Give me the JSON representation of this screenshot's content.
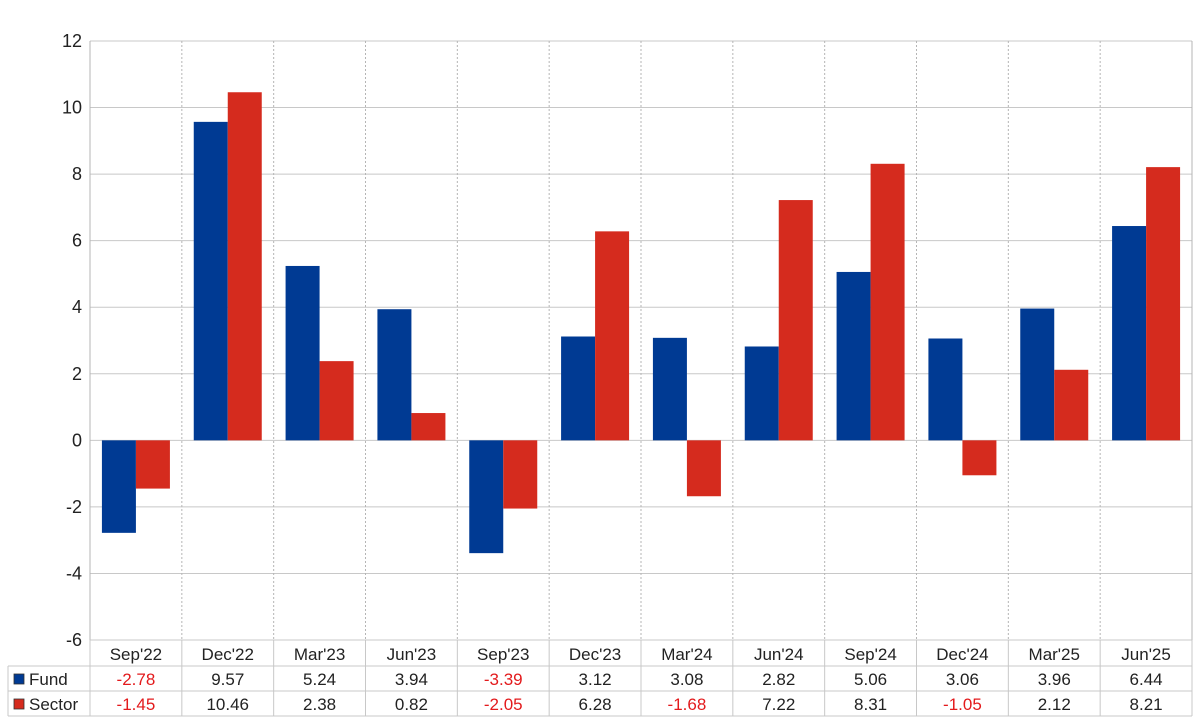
{
  "chart_data": {
    "type": "bar",
    "categories": [
      "Sep'22",
      "Dec'22",
      "Mar'23",
      "Jun'23",
      "Sep'23",
      "Dec'23",
      "Mar'24",
      "Jun'24",
      "Sep'24",
      "Dec'24",
      "Mar'25",
      "Jun'25"
    ],
    "series": [
      {
        "name": "Fund",
        "color": "#003a93",
        "values": [
          -2.78,
          9.57,
          5.24,
          3.94,
          -3.39,
          3.12,
          3.08,
          2.82,
          5.06,
          3.06,
          3.96,
          6.44
        ],
        "labels": [
          "-2.78",
          "9.57",
          "5.24",
          "3.94",
          "-3.39",
          "3.12",
          "3.08",
          "2.82",
          "5.06",
          "3.06",
          "3.96",
          "6.44"
        ]
      },
      {
        "name": "Sector",
        "color": "#d52b1e",
        "values": [
          -1.45,
          10.46,
          2.38,
          0.82,
          -2.05,
          6.28,
          -1.68,
          7.22,
          8.31,
          -1.05,
          2.12,
          8.21
        ],
        "labels": [
          "-1.45",
          "10.46",
          "2.38",
          "0.82",
          "-2.05",
          "6.28",
          "-1.68",
          "7.22",
          "8.31",
          "-1.05",
          "2.12",
          "8.21"
        ]
      }
    ],
    "yticks": [
      "12",
      "10",
      "8",
      "6",
      "4",
      "2",
      "0",
      "-2",
      "-4",
      "-6"
    ],
    "ylim": [
      -6,
      12
    ],
    "grid": true,
    "negative_value_color": "#e31a1c",
    "legend": "data table below chart"
  }
}
